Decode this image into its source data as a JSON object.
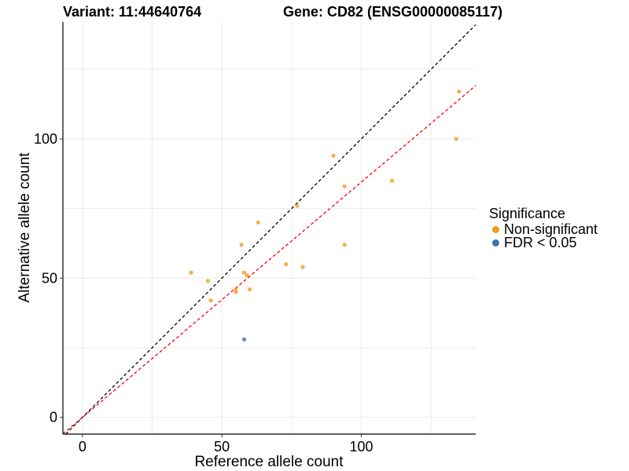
{
  "header": {
    "variant": "Variant: 11:44640764",
    "gene": "Gene: CD82 (ENSG00000085117)"
  },
  "chart_data": {
    "type": "scatter",
    "xlabel": "Reference allele count",
    "ylabel": "Alternative allele count",
    "xlim": [
      -7,
      141
    ],
    "ylim": [
      -6,
      142
    ],
    "x_ticks": [
      0,
      50,
      100
    ],
    "y_ticks": [
      0,
      50,
      100
    ],
    "grid": true,
    "reference_lines": [
      {
        "style": "dashed",
        "color": "#000000",
        "slope": 1.0,
        "intercept": 0
      },
      {
        "style": "dashed",
        "color": "#ff0000",
        "slope": 0.845,
        "intercept": 0
      }
    ],
    "legend": {
      "title": "Significance",
      "position": "right",
      "entries": [
        {
          "label": "Non-significant",
          "color": "#f59a1f"
        },
        {
          "label": "FDR < 0.05",
          "color": "#3f6fa8"
        }
      ]
    },
    "series": [
      {
        "name": "Non-significant",
        "color": "#f59a1f",
        "points": [
          {
            "x": 39,
            "y": 52
          },
          {
            "x": 45,
            "y": 49
          },
          {
            "x": 46,
            "y": 42
          },
          {
            "x": 55,
            "y": 45
          },
          {
            "x": 55,
            "y": 46
          },
          {
            "x": 57,
            "y": 62
          },
          {
            "x": 58,
            "y": 52
          },
          {
            "x": 59,
            "y": 51
          },
          {
            "x": 60,
            "y": 46
          },
          {
            "x": 63,
            "y": 70
          },
          {
            "x": 73,
            "y": 55
          },
          {
            "x": 77,
            "y": 76
          },
          {
            "x": 79,
            "y": 54
          },
          {
            "x": 90,
            "y": 94
          },
          {
            "x": 94,
            "y": 83
          },
          {
            "x": 94,
            "y": 62
          },
          {
            "x": 111,
            "y": 85
          },
          {
            "x": 134,
            "y": 100
          },
          {
            "x": 135,
            "y": 117
          }
        ]
      },
      {
        "name": "FDR < 0.05",
        "color": "#3f6fa8",
        "points": [
          {
            "x": 58,
            "y": 28
          }
        ]
      }
    ]
  }
}
